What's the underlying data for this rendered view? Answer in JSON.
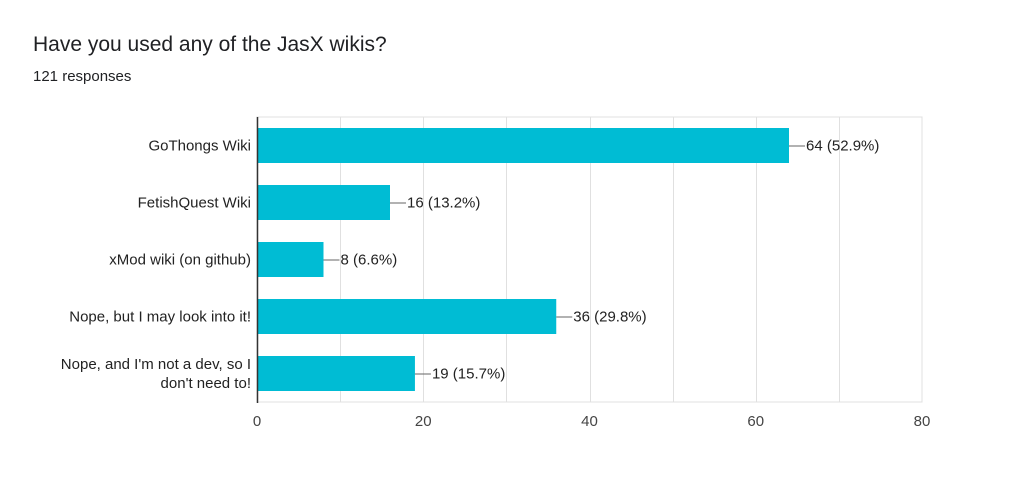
{
  "header": {
    "title": "Have you used any of the JasX wikis?",
    "responses": "121 responses"
  },
  "chart_data": {
    "type": "bar",
    "orientation": "horizontal",
    "categories": [
      [
        "GoThongs Wiki"
      ],
      [
        "FetishQuest Wiki"
      ],
      [
        "xMod wiki (on github)"
      ],
      [
        "Nope, but I may look into it!"
      ],
      [
        "Nope, and I'm not a dev, so I",
        "don't need to!"
      ]
    ],
    "values": [
      64,
      16,
      8,
      36,
      19
    ],
    "value_labels": [
      "64 (52.9%)",
      "16 (13.2%)",
      "8 (6.6%)",
      "36 (29.8%)",
      "19 (15.7%)"
    ],
    "xlim": [
      0,
      80
    ],
    "xticks": [
      0,
      20,
      40,
      60,
      80
    ],
    "grid": true,
    "bar_color": "#00bcd4",
    "grid_color": "#e0e0e0",
    "axis_color": "#333333"
  }
}
